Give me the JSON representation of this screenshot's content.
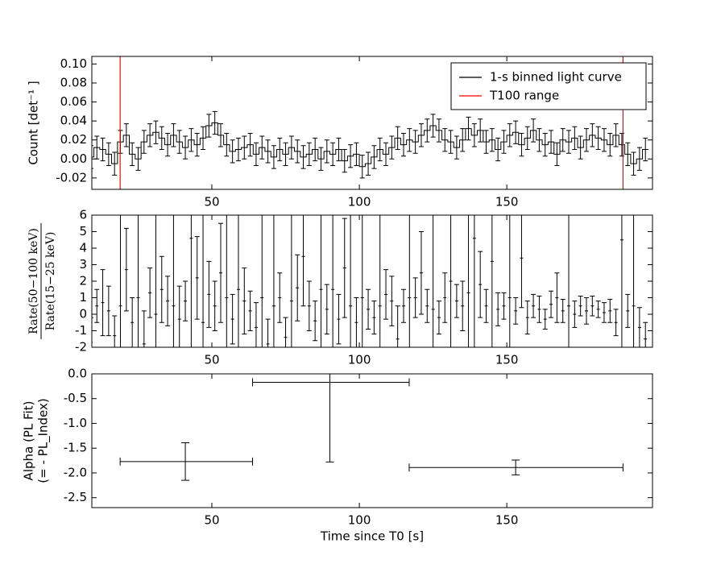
{
  "chart_data": [
    {
      "type": "step",
      "ylabel": "Count [det⁻¹ ]",
      "xlim": [
        9.3,
        199.4
      ],
      "xticks": [
        50,
        100,
        150
      ],
      "ylim": [
        -0.032,
        0.108
      ],
      "yticks": [
        -0.02,
        {
          "value": 0,
          "label": "0.00"
        },
        0.02,
        0.04,
        0.06,
        0.08,
        {
          "value": 0.1,
          "label": "0.10"
        }
      ],
      "legend": "upper right",
      "series": [
        {
          "name": "1-s binned light curve",
          "color": "#000000",
          "error": 0.012,
          "x": [
            9,
            11,
            13,
            15,
            17,
            19,
            21,
            23,
            25,
            27,
            29,
            31,
            33,
            35,
            37,
            39,
            41,
            43,
            45,
            47,
            49,
            51,
            53,
            55,
            57,
            59,
            61,
            63,
            65,
            67,
            69,
            71,
            73,
            75,
            77,
            79,
            81,
            83,
            85,
            87,
            89,
            91,
            93,
            95,
            97,
            99,
            101,
            103,
            105,
            107,
            109,
            111,
            113,
            115,
            117,
            119,
            121,
            123,
            125,
            127,
            129,
            131,
            133,
            135,
            137,
            139,
            141,
            143,
            145,
            147,
            149,
            151,
            153,
            155,
            157,
            159,
            161,
            163,
            165,
            167,
            169,
            171,
            173,
            175,
            177,
            179,
            181,
            183,
            185,
            187,
            189,
            191,
            193,
            195,
            197
          ],
          "values": [
            0.002,
            0.012,
            0.01,
            0.005,
            -0.005,
            0.018,
            0.025,
            0.005,
            0.0,
            0.018,
            0.025,
            0.028,
            0.022,
            0.015,
            0.025,
            0.018,
            0.012,
            0.02,
            0.015,
            0.022,
            0.035,
            0.038,
            0.025,
            0.015,
            0.008,
            0.01,
            0.012,
            0.015,
            0.005,
            0.012,
            0.008,
            0.002,
            0.01,
            0.005,
            0.012,
            0.008,
            0.002,
            0.005,
            0.01,
            0.0,
            0.008,
            0.005,
            0.01,
            -0.002,
            0.003,
            0.005,
            -0.008,
            -0.005,
            0.002,
            0.01,
            0.005,
            0.012,
            0.022,
            0.015,
            0.02,
            0.018,
            0.025,
            0.03,
            0.035,
            0.03,
            0.02,
            0.018,
            0.012,
            0.02,
            0.032,
            0.025,
            0.03,
            0.018,
            0.02,
            0.01,
            0.018,
            0.025,
            0.028,
            0.015,
            0.022,
            0.03,
            0.02,
            0.015,
            0.018,
            0.005,
            0.02,
            0.018,
            0.022,
            0.012,
            0.02,
            0.025,
            0.022,
            0.02,
            0.015,
            0.025,
            0.015,
            0.005,
            -0.005,
            0.0,
            0.01
          ]
        }
      ],
      "vlines": {
        "name": "T100 range",
        "color": "#ff0000",
        "values": [
          18.9,
          189.4
        ]
      }
    },
    {
      "type": "errorbar",
      "ylabel": {
        "numerator": "Rate(50−100 keV)",
        "denominator": "Rate(15−25 keV)"
      },
      "xlim": [
        9.3,
        199.4
      ],
      "xticks": [
        50,
        100,
        150
      ],
      "ylim": [
        -2,
        6
      ],
      "yticks": [
        -2,
        -1,
        0,
        1,
        2,
        3,
        4,
        5,
        6
      ],
      "series": [
        {
          "color": "#000000",
          "x": [
            9,
            11,
            13,
            15,
            17,
            19,
            21,
            23,
            25,
            27,
            29,
            31,
            33,
            35,
            37,
            39,
            41,
            43,
            45,
            47,
            49,
            51,
            53,
            55,
            57,
            59,
            61,
            63,
            65,
            67,
            69,
            71,
            73,
            75,
            77,
            79,
            81,
            83,
            85,
            87,
            89,
            91,
            93,
            95,
            97,
            99,
            101,
            103,
            105,
            107,
            109,
            111,
            113,
            115,
            117,
            119,
            121,
            123,
            125,
            127,
            129,
            131,
            133,
            135,
            137,
            139,
            141,
            143,
            145,
            147,
            149,
            151,
            153,
            155,
            157,
            159,
            161,
            163,
            165,
            167,
            169,
            171,
            173,
            175,
            177,
            179,
            181,
            183,
            185,
            187,
            189,
            191,
            193,
            195,
            197
          ],
          "values": [
            -1.7,
            0.5,
            0.7,
            0.2,
            -1.3,
            0.5,
            2.7,
            -0.5,
            1.0,
            -1.8,
            1.3,
            0,
            1.5,
            0.8,
            0.5,
            -0.3,
            0.8,
            4.6,
            2.2,
            -0.5,
            1.2,
            0.5,
            2.5,
            1.0,
            -0.3,
            1.5,
            0.8,
            0.2,
            -0.8,
            1.0,
            -1.8,
            0.5,
            1.0,
            -1.4,
            0.8,
            1.6,
            3.5,
            0.5,
            -0.4,
            1.5,
            0.3,
            1.5,
            -0.3,
            2.8,
            0.5,
            -0.5,
            1.0,
            0.3,
            -0.2,
            0.5,
            1.2,
            0.8,
            -1.5,
            0.5,
            1.0,
            1.0,
            2.5,
            0.5,
            0.3,
            -0.2,
            1.0,
            2.0,
            0.8,
            0.5,
            1.3,
            4.6,
            1.8,
            0.5,
            3.2,
            0.3,
            0.5,
            1.0,
            0.2,
            3.4,
            -0.2,
            0.5,
            0.3,
            -0.3,
            0.6,
            1.0,
            0.2,
            0.5,
            0.0,
            0.5,
            0.2,
            0.5,
            0.3,
            0.1,
            0.2,
            -0.5,
            4.5,
            0.2,
            0.5,
            -0.8,
            -1.5
          ],
          "errors": [
            1.5,
            1.0,
            2,
            1.5,
            1.2,
            10,
            2.5,
            1.5,
            10,
            2,
            1.5,
            10,
            2,
            1.5,
            10,
            2,
            1.2,
            10,
            2.5,
            10,
            2,
            1.5,
            3,
            10,
            1.5,
            10,
            2,
            1.2,
            1.5,
            10,
            1.5,
            10,
            1.5,
            1.2,
            10,
            2,
            3,
            1.5,
            1.2,
            10,
            1.5,
            10,
            1.5,
            3,
            10,
            1.5,
            10,
            1.2,
            1,
            10,
            1.5,
            1.5,
            2,
            1,
            10,
            1.2,
            2.5,
            1,
            10,
            1,
            1.5,
            10,
            1,
            1.5,
            10,
            10,
            2,
            1,
            10,
            1,
            0.8,
            10,
            0.8,
            3,
            1,
            0.7,
            0.8,
            0.6,
            0.8,
            1.5,
            0.7,
            10,
            0.8,
            0.6,
            0.8,
            0.6,
            0.5,
            0.6,
            0.7,
            0.8,
            10,
            1,
            10,
            1.2,
            1
          ]
        }
      ]
    },
    {
      "type": "errorbar",
      "ylabel": [
        "Alpha (PL Fit)",
        "(= - PL_Index)"
      ],
      "xlabel": "Time since T0 [s]",
      "xlim": [
        9.3,
        199.4
      ],
      "xticks": [
        50,
        100,
        150
      ],
      "ylim": [
        -2.7,
        0
      ],
      "yticks": [
        -2.5,
        {
          "value": -2,
          "label": "-2.0"
        },
        -1.5,
        {
          "value": -1,
          "label": "-1.0"
        },
        -0.5,
        {
          "value": 0,
          "label": "0.0"
        }
      ],
      "series": [
        {
          "color": "#000000",
          "x": [
            41,
            90,
            153
          ],
          "xmin": [
            18.9,
            63.8,
            116.9
          ],
          "xmax": [
            63.8,
            116.9,
            189.4
          ],
          "values": [
            -1.77,
            -0.17,
            -1.89
          ],
          "errors": [
            0.38,
            1.61,
            0.15
          ]
        }
      ]
    }
  ]
}
